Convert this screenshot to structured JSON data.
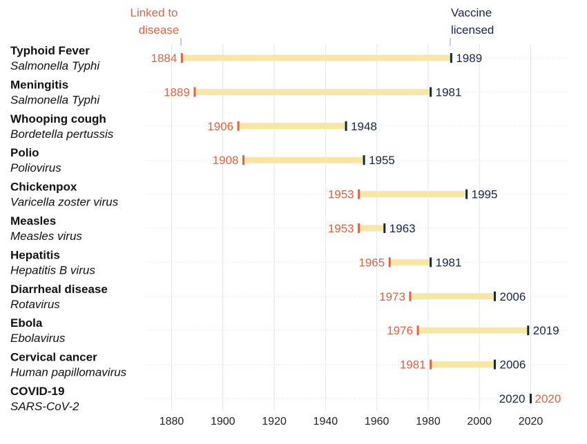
{
  "header": {
    "linked_line1": "Linked to",
    "linked_line2": "disease",
    "vaccine_line1": "Vaccine",
    "vaccine_line2": "licensed"
  },
  "colors": {
    "linked": "#e8603c",
    "vaccine": "#14244a",
    "bar": "#f7e6a6",
    "grid": "#e6e6e6"
  },
  "chart_data": {
    "type": "dumbbell",
    "title": "",
    "xlabel": "",
    "ylabel": "",
    "xlim": [
      1870,
      2030
    ],
    "xticks": [
      1880,
      1900,
      1920,
      1940,
      1960,
      1980,
      2000,
      2020
    ],
    "grid": true,
    "series": [
      {
        "name": "Linked to disease",
        "color": "#e8603c"
      },
      {
        "name": "Vaccine licensed",
        "color": "#14244a"
      }
    ],
    "rows": [
      {
        "disease": "Typhoid Fever",
        "pathogen": "Salmonella Typhi",
        "linked": 1884,
        "vaccine": 1989
      },
      {
        "disease": "Meningitis",
        "pathogen": "Salmonella Typhi",
        "linked": 1889,
        "vaccine": 1981
      },
      {
        "disease": "Whooping cough",
        "pathogen": "Bordetella pertussis",
        "linked": 1906,
        "vaccine": 1948
      },
      {
        "disease": "Polio",
        "pathogen": "Poliovirus",
        "linked": 1908,
        "vaccine": 1955
      },
      {
        "disease": "Chickenpox",
        "pathogen": "Varicella zoster virus",
        "linked": 1953,
        "vaccine": 1995
      },
      {
        "disease": "Measles",
        "pathogen": "Measles virus",
        "linked": 1953,
        "vaccine": 1963
      },
      {
        "disease": "Hepatitis",
        "pathogen": "Hepatitis B virus",
        "linked": 1965,
        "vaccine": 1981
      },
      {
        "disease": "Diarrheal disease",
        "pathogen": "Rotavirus",
        "linked": 1973,
        "vaccine": 2006
      },
      {
        "disease": "Ebola",
        "pathogen": "Ebolavirus",
        "linked": 1976,
        "vaccine": 2019
      },
      {
        "disease": "Cervical cancer",
        "pathogen": "Human papillomavirus",
        "linked": 1981,
        "vaccine": 2006
      },
      {
        "disease": "COVID-19",
        "pathogen": "SARS-CoV-2",
        "linked": 2020,
        "vaccine": 2020
      }
    ]
  }
}
